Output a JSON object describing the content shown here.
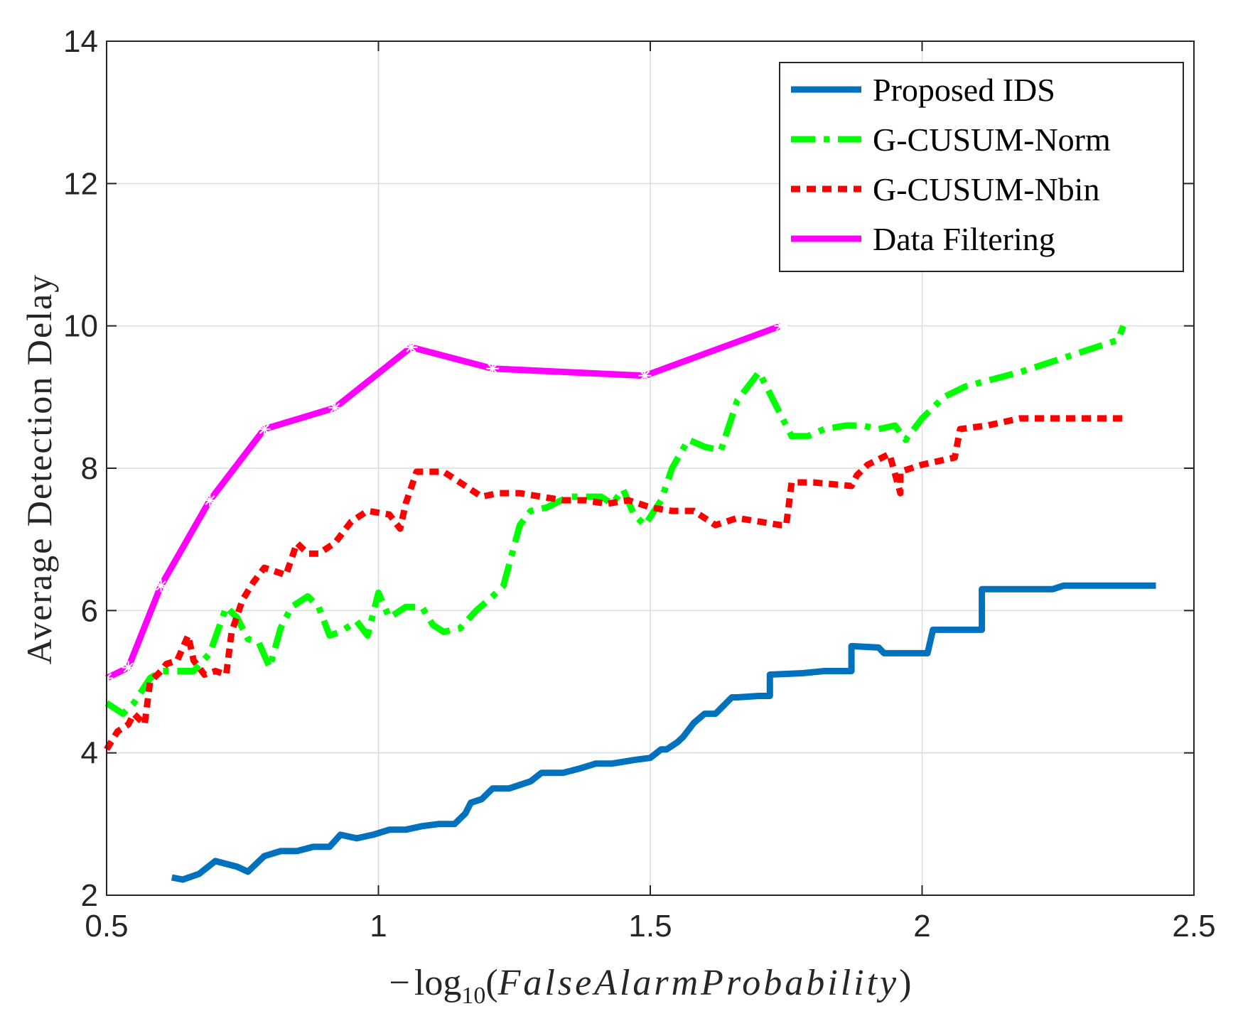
{
  "chart_data": {
    "type": "line",
    "title": "",
    "xlabel": "−log10(FalseAlarmProbability)",
    "xlabel_parts": {
      "minus": "−",
      "log": "log",
      "sub": "10",
      "open": "(",
      "arg": "FalseAlarmProbability",
      "close": ")"
    },
    "ylabel": "Average Detection Delay",
    "xlim": [
      0.5,
      2.5
    ],
    "ylim": [
      2,
      14
    ],
    "xticks": [
      "0.5",
      "1",
      "1.5",
      "2",
      "2.5"
    ],
    "yticks": [
      "2",
      "4",
      "6",
      "8",
      "10",
      "12",
      "14"
    ],
    "grid": true,
    "legend_position": "top-right",
    "series": [
      {
        "name": "Proposed IDS",
        "color": "#0072BD",
        "style": "solid",
        "x": [
          0.62,
          0.64,
          0.67,
          0.7,
          0.74,
          0.76,
          0.79,
          0.82,
          0.85,
          0.88,
          0.91,
          0.93,
          0.96,
          0.99,
          1.02,
          1.05,
          1.08,
          1.11,
          1.14,
          1.16,
          1.17,
          1.19,
          1.21,
          1.24,
          1.28,
          1.3,
          1.34,
          1.37,
          1.4,
          1.43,
          1.47,
          1.5,
          1.52,
          1.53,
          1.55,
          1.56,
          1.58,
          1.6,
          1.62,
          1.65,
          1.66,
          1.7,
          1.72,
          1.72,
          1.78,
          1.82,
          1.87,
          1.87,
          1.92,
          1.93,
          1.96,
          2.01,
          2.02,
          2.06,
          2.1,
          2.11,
          2.11,
          2.24,
          2.26,
          2.43
        ],
        "y": [
          2.25,
          2.22,
          2.3,
          2.48,
          2.4,
          2.33,
          2.55,
          2.62,
          2.62,
          2.68,
          2.68,
          2.85,
          2.8,
          2.85,
          2.92,
          2.92,
          2.97,
          3.0,
          3.0,
          3.15,
          3.3,
          3.35,
          3.5,
          3.5,
          3.6,
          3.72,
          3.72,
          3.78,
          3.85,
          3.85,
          3.9,
          3.93,
          4.05,
          4.05,
          4.15,
          4.22,
          4.42,
          4.55,
          4.55,
          4.78,
          4.78,
          4.8,
          4.8,
          5.1,
          5.12,
          5.15,
          5.15,
          5.5,
          5.48,
          5.4,
          5.4,
          5.4,
          5.73,
          5.73,
          5.73,
          5.73,
          6.3,
          6.3,
          6.35,
          6.35
        ]
      },
      {
        "name": "G-CUSUM-Norm",
        "color": "#00FF00",
        "style": "dashdot",
        "x": [
          0.5,
          0.53,
          0.55,
          0.58,
          0.6,
          0.63,
          0.66,
          0.69,
          0.72,
          0.74,
          0.76,
          0.78,
          0.8,
          0.82,
          0.84,
          0.87,
          0.89,
          0.91,
          0.93,
          0.96,
          0.98,
          1.0,
          1.02,
          1.05,
          1.08,
          1.1,
          1.12,
          1.15,
          1.18,
          1.21,
          1.23,
          1.26,
          1.28,
          1.31,
          1.35,
          1.38,
          1.41,
          1.43,
          1.45,
          1.47,
          1.49,
          1.52,
          1.54,
          1.57,
          1.6,
          1.63,
          1.66,
          1.68,
          1.7,
          1.73,
          1.76,
          1.79,
          1.82,
          1.86,
          1.89,
          1.92,
          1.95,
          1.97,
          2.0,
          2.04,
          2.08,
          2.13,
          2.18,
          2.24,
          2.3,
          2.36,
          2.37
        ],
        "y": [
          4.7,
          4.55,
          4.7,
          5.05,
          5.15,
          5.15,
          5.15,
          5.4,
          6.05,
          5.9,
          5.6,
          5.55,
          5.2,
          5.75,
          6.05,
          6.2,
          6.05,
          5.65,
          5.7,
          5.85,
          5.65,
          6.25,
          5.9,
          6.05,
          6.05,
          5.8,
          5.7,
          5.75,
          6.0,
          6.2,
          6.35,
          7.2,
          7.4,
          7.45,
          7.6,
          7.6,
          7.6,
          7.5,
          7.7,
          7.35,
          7.2,
          7.55,
          8.0,
          8.4,
          8.3,
          8.25,
          8.95,
          9.15,
          9.35,
          8.9,
          8.45,
          8.45,
          8.55,
          8.6,
          8.6,
          8.55,
          8.6,
          8.4,
          8.7,
          9.0,
          9.15,
          9.25,
          9.35,
          9.5,
          9.65,
          9.8,
          10.0
        ]
      },
      {
        "name": "G-CUSUM-Nbin",
        "color": "#FF0000",
        "style": "dotted",
        "x": [
          0.5,
          0.52,
          0.54,
          0.55,
          0.57,
          0.58,
          0.6,
          0.61,
          0.63,
          0.65,
          0.66,
          0.68,
          0.7,
          0.72,
          0.73,
          0.75,
          0.77,
          0.79,
          0.81,
          0.83,
          0.85,
          0.87,
          0.89,
          0.92,
          0.95,
          0.98,
          1.02,
          1.04,
          1.05,
          1.07,
          1.09,
          1.12,
          1.15,
          1.19,
          1.22,
          1.26,
          1.3,
          1.34,
          1.38,
          1.42,
          1.46,
          1.5,
          1.54,
          1.58,
          1.62,
          1.66,
          1.7,
          1.74,
          1.75,
          1.76,
          1.8,
          1.87,
          1.88,
          1.9,
          1.94,
          1.96,
          1.96,
          2.0,
          2.06,
          2.07,
          2.12,
          2.18,
          2.24,
          2.3,
          2.37
        ],
        "y": [
          4.05,
          4.3,
          4.4,
          4.55,
          4.4,
          5.0,
          5.15,
          5.25,
          5.3,
          5.65,
          5.3,
          5.1,
          5.15,
          5.1,
          5.7,
          6.15,
          6.4,
          6.6,
          6.55,
          6.5,
          6.95,
          6.8,
          6.8,
          6.95,
          7.25,
          7.4,
          7.35,
          7.15,
          7.5,
          7.95,
          7.95,
          7.95,
          7.8,
          7.6,
          7.65,
          7.65,
          7.6,
          7.55,
          7.55,
          7.5,
          7.55,
          7.45,
          7.4,
          7.4,
          7.2,
          7.3,
          7.25,
          7.2,
          7.2,
          7.8,
          7.8,
          7.75,
          7.9,
          8.05,
          8.2,
          7.65,
          7.95,
          8.05,
          8.15,
          8.55,
          8.6,
          8.7,
          8.7,
          8.7,
          8.7
        ]
      },
      {
        "name": "Data Filtering",
        "color": "#FF00FF",
        "style": "solid-star",
        "x": [
          0.5,
          0.54,
          0.6,
          0.69,
          0.79,
          0.92,
          1.06,
          1.21,
          1.49,
          1.74
        ],
        "y": [
          5.05,
          5.2,
          6.35,
          7.55,
          8.55,
          8.85,
          9.7,
          9.4,
          9.3,
          10.0
        ]
      }
    ]
  }
}
